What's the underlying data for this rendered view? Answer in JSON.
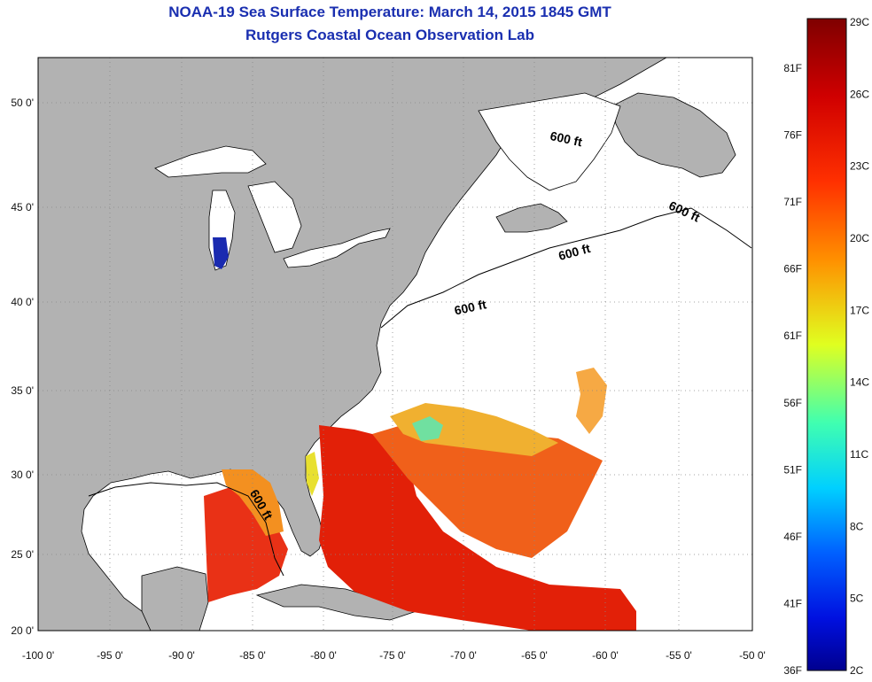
{
  "title": "NOAA-19 Sea Surface Temperature:  March 14, 2015 1845 GMT",
  "subtitle": "Rutgers Coastal Ocean Observation Lab",
  "lat_labels": [
    "50 0'",
    "45 0'",
    "40 0'",
    "35 0'",
    "30 0'",
    "25 0'",
    "20 0'"
  ],
  "lon_labels": [
    "-100 0'",
    "-95 0'",
    "-90 0'",
    "-85 0'",
    "-80 0'",
    "-75 0'",
    "-70 0'",
    "-65 0'",
    "-60 0'",
    "-55 0'",
    "-50 0'"
  ],
  "contour_label": "600 ft",
  "colorbar": {
    "celsius": [
      "29C",
      "26C",
      "23C",
      "20C",
      "17C",
      "14C",
      "11C",
      "8C",
      "5C",
      "2C"
    ],
    "fahrenheit": [
      "81F",
      "76F",
      "71F",
      "66F",
      "61F",
      "56F",
      "51F",
      "46F",
      "41F",
      "36F"
    ],
    "colors_top_to_bottom": [
      "#7f0000",
      "#ff0000",
      "#ff8000",
      "#ffff00",
      "#80ff80",
      "#00ffff",
      "#0080ff",
      "#0000ff",
      "#00008f"
    ]
  },
  "colors": {
    "land": "#b2b2b2",
    "no_data": "#ffffff",
    "title": "#1a2fb0"
  }
}
